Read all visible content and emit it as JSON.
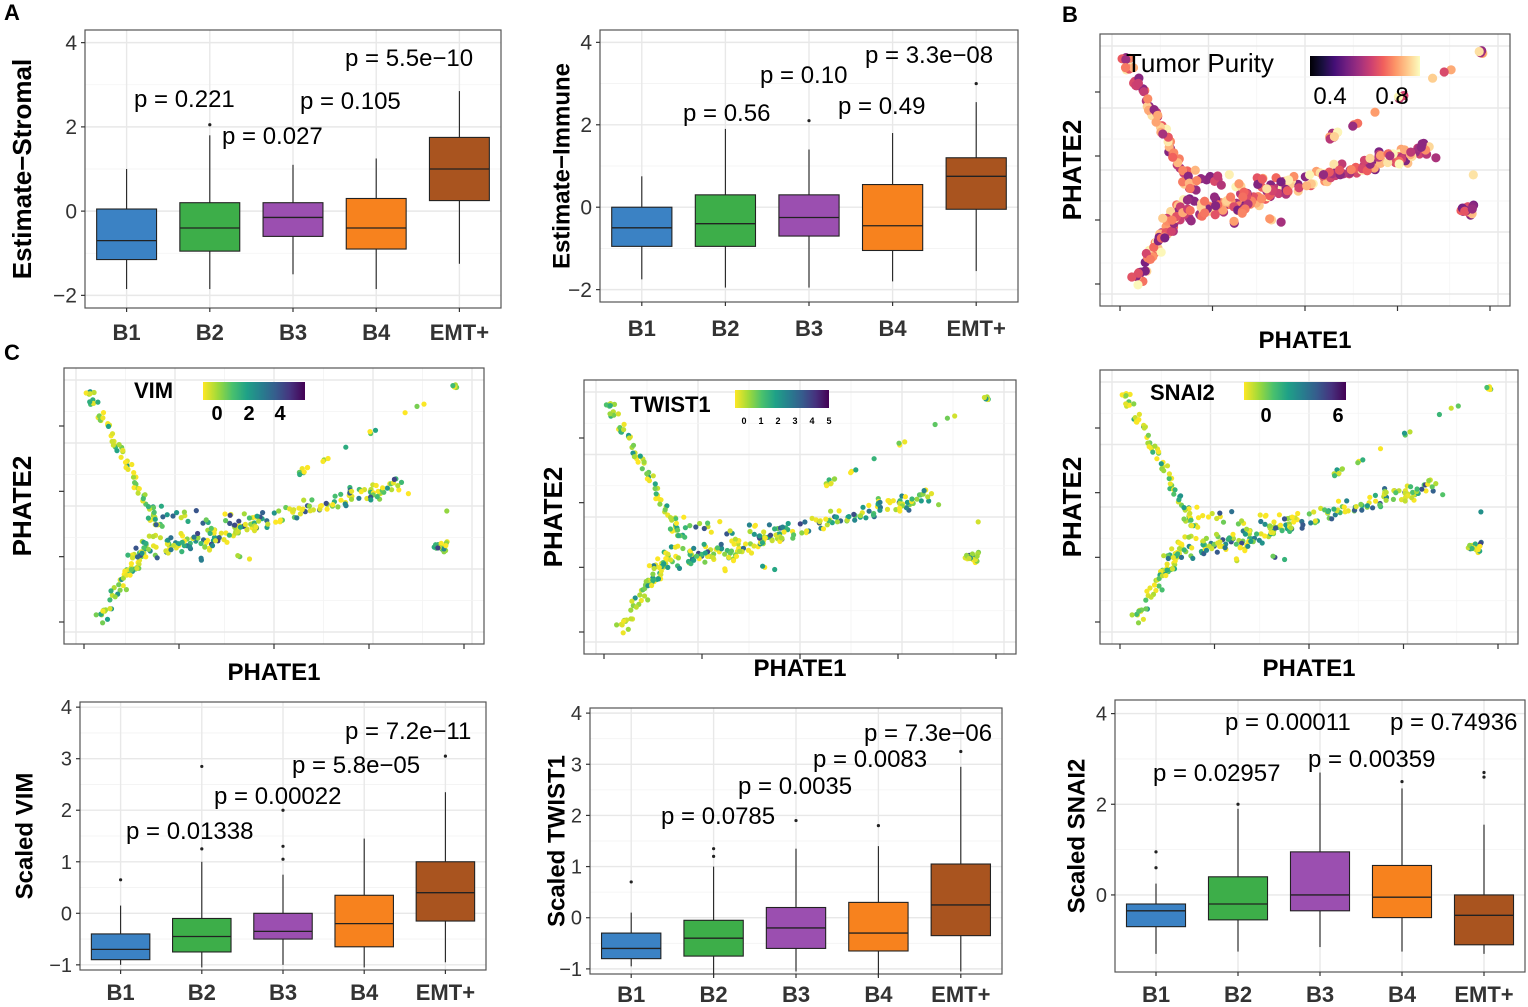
{
  "panel_labels": [
    "A",
    "B",
    "C"
  ],
  "colors": {
    "B1": "#3b82c4",
    "B2": "#3dae49",
    "B3": "#9b4fb0",
    "B4": "#f7821e",
    "EMT+": "#a9541f",
    "viridis": [
      "#fde725",
      "#a0da39",
      "#4ac16d",
      "#1fa187",
      "#277f8e",
      "#365c8d",
      "#46327e",
      "#440154"
    ],
    "magma": [
      "#fcfdbf",
      "#feca8d",
      "#fd9668",
      "#f1605d",
      "#cd4071",
      "#9e2f7f",
      "#721f81",
      "#440f76",
      "#180f3d",
      "#000004"
    ]
  },
  "chart_data": [
    {
      "id": "stromal",
      "type": "box",
      "categories": [
        "B1",
        "B2",
        "B3",
        "B4",
        "EMT+"
      ],
      "ylabel": "Estimate−Stromal",
      "ylim": [
        -2.3,
        4.3
      ],
      "yticks": [
        -2,
        0,
        2,
        4
      ],
      "ytick_labels": [
        "−2",
        "0",
        "2",
        "4"
      ],
      "boxes": [
        {
          "q1": -1.15,
          "median": -0.7,
          "q3": 0.05,
          "whisker_low": -1.85,
          "whisker_high": 1.0,
          "outliers": []
        },
        {
          "q1": -0.95,
          "median": -0.4,
          "q3": 0.2,
          "whisker_low": -1.85,
          "whisker_high": 1.8,
          "outliers": [
            2.05
          ]
        },
        {
          "q1": -0.6,
          "median": -0.15,
          "q3": 0.2,
          "whisker_low": -1.5,
          "whisker_high": 1.1,
          "outliers": []
        },
        {
          "q1": -0.9,
          "median": -0.4,
          "q3": 0.3,
          "whisker_low": -1.85,
          "whisker_high": 1.25,
          "outliers": []
        },
        {
          "q1": 0.25,
          "median": 1.0,
          "q3": 1.75,
          "whisker_low": -1.25,
          "whisker_high": 2.85,
          "outliers": []
        }
      ],
      "annotations": [
        "p = 0.221",
        "p = 0.027",
        "p = 0.105",
        "p = 5.5e−10"
      ]
    },
    {
      "id": "immune",
      "type": "box",
      "categories": [
        "B1",
        "B2",
        "B3",
        "B4",
        "EMT+"
      ],
      "ylabel": "Estimate−Immune",
      "ylim": [
        -2.3,
        4.3
      ],
      "yticks": [
        -2,
        0,
        2,
        4
      ],
      "ytick_labels": [
        "−2",
        "0",
        "2",
        "4"
      ],
      "boxes": [
        {
          "q1": -0.95,
          "median": -0.5,
          "q3": 0.0,
          "whisker_low": -1.75,
          "whisker_high": 0.75,
          "outliers": []
        },
        {
          "q1": -0.95,
          "median": -0.4,
          "q3": 0.3,
          "whisker_low": -1.95,
          "whisker_high": 1.9,
          "outliers": []
        },
        {
          "q1": -0.7,
          "median": -0.25,
          "q3": 0.3,
          "whisker_low": -1.95,
          "whisker_high": 1.4,
          "outliers": [
            2.1
          ]
        },
        {
          "q1": -1.05,
          "median": -0.45,
          "q3": 0.55,
          "whisker_low": -1.8,
          "whisker_high": 1.8,
          "outliers": []
        },
        {
          "q1": -0.05,
          "median": 0.75,
          "q3": 1.2,
          "whisker_low": -1.55,
          "whisker_high": 2.55,
          "outliers": [
            3.0
          ]
        }
      ],
      "annotations": [
        "p = 0.56",
        "p = 0.10",
        "p = 0.49",
        "p = 3.3e−08"
      ]
    },
    {
      "id": "purity",
      "type": "scatter",
      "xlabel": "PHATE1",
      "ylabel": "PHATE2",
      "colorbar": {
        "label": "Tumor Purity",
        "ticks": [
          "0.4",
          "0.8"
        ],
        "colormap": "magma_reversed"
      },
      "points": "PHATE embedding (~500 tumours) colored by tumour purity"
    },
    {
      "id": "vim_scatter",
      "type": "scatter",
      "xlabel": "PHATE1",
      "ylabel": "PHATE2",
      "colorbar": {
        "label": "VIM",
        "ticks": [
          "0",
          "2",
          "4"
        ],
        "colormap": "viridis_reversed"
      }
    },
    {
      "id": "twist_scatter",
      "type": "scatter",
      "xlabel": "PHATE1",
      "ylabel": "PHATE2",
      "colorbar": {
        "label": "TWIST1",
        "ticks": [
          "0",
          "1",
          "2",
          "3",
          "4",
          "5"
        ],
        "colormap": "viridis_reversed"
      }
    },
    {
      "id": "snai_scatter",
      "type": "scatter",
      "xlabel": "PHATE1",
      "ylabel": "PHATE2",
      "colorbar": {
        "label": "SNAI2",
        "ticks": [
          "0",
          "6"
        ],
        "colormap": "viridis_reversed"
      }
    },
    {
      "id": "vim_box",
      "type": "box",
      "categories": [
        "B1",
        "B2",
        "B3",
        "B4",
        "EMT+"
      ],
      "ylabel": "Scaled VIM",
      "ylim": [
        -1.1,
        4.1
      ],
      "yticks": [
        -1,
        0,
        1,
        2,
        3,
        4
      ],
      "ytick_labels": [
        "−1",
        "0",
        "1",
        "2",
        "3",
        "4"
      ],
      "boxes": [
        {
          "q1": -0.9,
          "median": -0.7,
          "q3": -0.4,
          "whisker_low": -1.0,
          "whisker_high": 0.15,
          "outliers": [
            0.65
          ]
        },
        {
          "q1": -0.75,
          "median": -0.45,
          "q3": -0.1,
          "whisker_low": -1.05,
          "whisker_high": 1.0,
          "outliers": [
            1.25,
            2.85
          ]
        },
        {
          "q1": -0.5,
          "median": -0.35,
          "q3": 0.0,
          "whisker_low": -1.0,
          "whisker_high": 0.75,
          "outliers": [
            1.05,
            1.3,
            2.0
          ]
        },
        {
          "q1": -0.65,
          "median": -0.2,
          "q3": 0.35,
          "whisker_low": -1.05,
          "whisker_high": 1.45,
          "outliers": []
        },
        {
          "q1": -0.15,
          "median": 0.4,
          "q3": 1.0,
          "whisker_low": -0.95,
          "whisker_high": 2.35,
          "outliers": [
            3.05
          ]
        }
      ],
      "annotations": [
        "p = 0.01338",
        "p = 0.00022",
        "p = 5.8e−05",
        "p = 7.2e−11"
      ]
    },
    {
      "id": "twist_box",
      "type": "box",
      "categories": [
        "B1",
        "B2",
        "B3",
        "B4",
        "EMT+"
      ],
      "ylabel": "Scaled TWIST1",
      "ylim": [
        -1.1,
        4.1
      ],
      "yticks": [
        -1,
        0,
        1,
        2,
        3,
        4
      ],
      "ytick_labels": [
        "−1",
        "0",
        "1",
        "2",
        "3",
        "4"
      ],
      "boxes": [
        {
          "q1": -0.8,
          "median": -0.6,
          "q3": -0.3,
          "whisker_low": -0.95,
          "whisker_high": 0.1,
          "outliers": [
            0.7
          ]
        },
        {
          "q1": -0.75,
          "median": -0.4,
          "q3": -0.05,
          "whisker_low": -1.15,
          "whisker_high": 1.0,
          "outliers": [
            1.2,
            1.35
          ]
        },
        {
          "q1": -0.6,
          "median": -0.2,
          "q3": 0.2,
          "whisker_low": -1.05,
          "whisker_high": 1.35,
          "outliers": [
            1.9
          ]
        },
        {
          "q1": -0.65,
          "median": -0.3,
          "q3": 0.3,
          "whisker_low": -1.15,
          "whisker_high": 1.4,
          "outliers": [
            1.8
          ]
        },
        {
          "q1": -0.35,
          "median": 0.25,
          "q3": 1.05,
          "whisker_low": -1.05,
          "whisker_high": 2.95,
          "outliers": [
            3.25
          ]
        }
      ],
      "annotations": [
        "p = 0.0785",
        "p = 0.0035",
        "p = 0.0083",
        "p = 7.3e−06"
      ]
    },
    {
      "id": "snai_box",
      "type": "box",
      "categories": [
        "B1",
        "B2",
        "B3",
        "B4",
        "EMT+"
      ],
      "ylabel": "Scaled SNAI2",
      "ylim": [
        -1.7,
        4.3
      ],
      "yticks": [
        0,
        2,
        4
      ],
      "ytick_labels": [
        "0",
        "2",
        "4"
      ],
      "boxes": [
        {
          "q1": -0.7,
          "median": -0.35,
          "q3": -0.2,
          "whisker_low": -1.3,
          "whisker_high": 0.25,
          "outliers": [
            0.6,
            0.95
          ]
        },
        {
          "q1": -0.55,
          "median": -0.2,
          "q3": 0.4,
          "whisker_low": -1.25,
          "whisker_high": 1.9,
          "outliers": [
            2.0
          ]
        },
        {
          "q1": -0.35,
          "median": 0.0,
          "q3": 0.95,
          "whisker_low": -1.15,
          "whisker_high": 2.7,
          "outliers": []
        },
        {
          "q1": -0.5,
          "median": -0.05,
          "q3": 0.65,
          "whisker_low": -1.25,
          "whisker_high": 2.35,
          "outliers": [
            2.5
          ]
        },
        {
          "q1": -1.1,
          "median": -0.45,
          "q3": 0.0,
          "whisker_low": -1.3,
          "whisker_high": 1.55,
          "outliers": [
            2.6,
            2.7
          ]
        }
      ],
      "annotations": [
        "p = 0.02957",
        "p = 0.00011",
        "p = 0.00359",
        "p = 0.74936"
      ]
    }
  ]
}
